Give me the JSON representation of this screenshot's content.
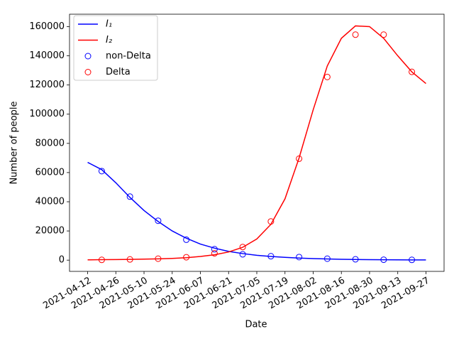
{
  "chart_data": {
    "type": "line",
    "x_label": "Date",
    "y_label": "Number of people",
    "xlim": [
      "2021-04-03",
      "2021-10-06"
    ],
    "xticks": [
      "2021-04-12",
      "2021-04-26",
      "2021-05-10",
      "2021-05-24",
      "2021-06-07",
      "2021-06-21",
      "2021-07-05",
      "2021-07-19",
      "2021-08-02",
      "2021-08-16",
      "2021-08-30",
      "2021-09-13",
      "2021-09-27"
    ],
    "ylim": [
      -7700,
      168500
    ],
    "yticks": [
      0,
      20000,
      40000,
      60000,
      80000,
      100000,
      120000,
      140000,
      160000
    ],
    "legend": "upper left",
    "series": [
      {
        "name": "I₁",
        "color": "#0000ff",
        "style": "line",
        "x": [
          "2021-04-12",
          "2021-04-19",
          "2021-04-26",
          "2021-05-03",
          "2021-05-10",
          "2021-05-17",
          "2021-05-24",
          "2021-05-31",
          "2021-06-07",
          "2021-06-14",
          "2021-06-21",
          "2021-06-28",
          "2021-07-05",
          "2021-07-12",
          "2021-07-19",
          "2021-07-26",
          "2021-08-02",
          "2021-08-09",
          "2021-08-16",
          "2021-08-23",
          "2021-08-30",
          "2021-09-06",
          "2021-09-13",
          "2021-09-20",
          "2021-09-27"
        ],
        "values": [
          67000,
          62000,
          53000,
          43000,
          34000,
          26500,
          20000,
          15000,
          11000,
          8200,
          6000,
          4500,
          3300,
          2500,
          1900,
          1400,
          1050,
          800,
          600,
          450,
          350,
          270,
          210,
          160,
          120
        ]
      },
      {
        "name": "I₂",
        "color": "#ff0000",
        "style": "line",
        "x": [
          "2021-04-12",
          "2021-04-19",
          "2021-04-26",
          "2021-05-03",
          "2021-05-10",
          "2021-05-17",
          "2021-05-24",
          "2021-05-31",
          "2021-06-07",
          "2021-06-14",
          "2021-06-21",
          "2021-06-28",
          "2021-07-05",
          "2021-07-12",
          "2021-07-19",
          "2021-07-26",
          "2021-08-02",
          "2021-08-09",
          "2021-08-16",
          "2021-08-23",
          "2021-08-30",
          "2021-09-06",
          "2021-09-13",
          "2021-09-20",
          "2021-09-27"
        ],
        "values": [
          200,
          300,
          400,
          500,
          700,
          900,
          1200,
          1700,
          2500,
          3700,
          5600,
          8800,
          14500,
          24500,
          42000,
          70000,
          103000,
          133000,
          152000,
          160500,
          160000,
          152000,
          140000,
          129000,
          121000
        ]
      },
      {
        "name": "non-Delta",
        "color": "#0000ff",
        "style": "marker",
        "x": [
          "2021-04-19",
          "2021-05-03",
          "2021-05-17",
          "2021-05-31",
          "2021-06-14",
          "2021-06-28",
          "2021-07-12",
          "2021-07-26",
          "2021-08-09",
          "2021-08-23",
          "2021-09-06",
          "2021-09-20"
        ],
        "values": [
          61000,
          43500,
          27000,
          14000,
          7500,
          4000,
          2700,
          2100,
          1000,
          600,
          300,
          200
        ]
      },
      {
        "name": "Delta",
        "color": "#ff0000",
        "style": "marker",
        "x": [
          "2021-04-19",
          "2021-05-03",
          "2021-05-17",
          "2021-05-31",
          "2021-06-14",
          "2021-06-28",
          "2021-07-12",
          "2021-07-26",
          "2021-08-09",
          "2021-08-23",
          "2021-09-06",
          "2021-09-20"
        ],
        "values": [
          200,
          500,
          1000,
          2000,
          4700,
          9000,
          26500,
          69500,
          125500,
          154500,
          154500,
          129000
        ]
      }
    ]
  }
}
